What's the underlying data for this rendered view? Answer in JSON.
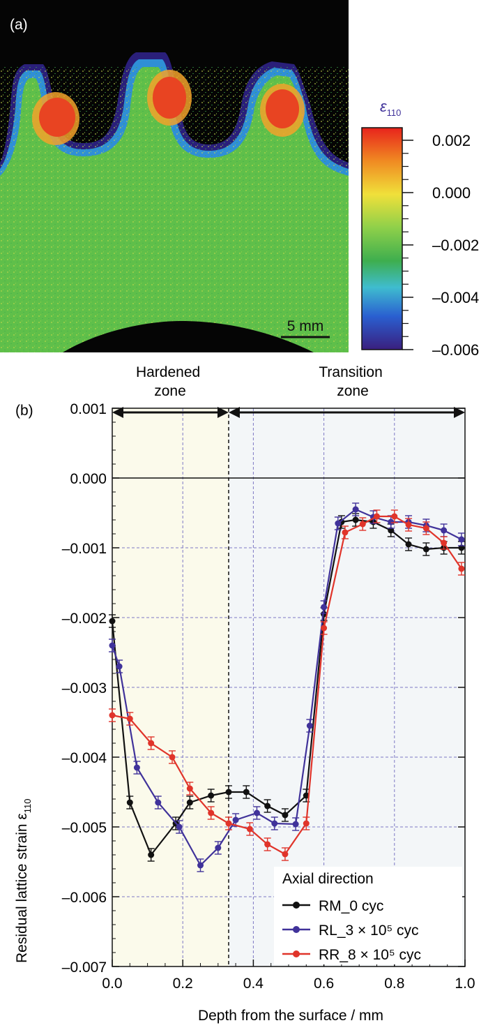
{
  "panel_a": {
    "label": "(a)",
    "colorbar_title": "ε",
    "colorbar_sub": "110",
    "colorbar_ticks": [
      "0.002",
      "0.000",
      "–0.002",
      "–0.004",
      "–0.006"
    ],
    "scale_bar": "5 mm",
    "colors": {
      "background": "#050505",
      "bulk": "#5fbf4a",
      "surface": "#2a66d8",
      "edge": "#2a1f7a",
      "tip": "#e84422",
      "tip_halo": "#f2a22a"
    }
  },
  "panel_b": {
    "label": "(b)",
    "zone_hardened": [
      "Hardened",
      "zone"
    ],
    "zone_transition": [
      "Transition",
      "zone"
    ],
    "zone_divider_x": 0.33,
    "zone_colors": {
      "hardened": "#fbfaeb",
      "transition": "#f3f6f8"
    }
  },
  "chart_data": {
    "type": "line",
    "xlabel": "Depth from the surface / mm",
    "ylabel": "Residual lattice strain ε",
    "ylabel_sub": "110",
    "xlim": [
      0.0,
      1.0
    ],
    "ylim": [
      -0.007,
      0.001
    ],
    "x_ticks": [
      "0.0",
      "0.2",
      "0.4",
      "0.6",
      "0.8",
      "1.0"
    ],
    "y_ticks": [
      "0.001",
      "0.000",
      "–0.001",
      "–0.002",
      "–0.003",
      "–0.004",
      "–0.005",
      "–0.006",
      "–0.007"
    ],
    "grid": true,
    "legend_title": "Axial direction",
    "legend_position": "bottom-right",
    "series": [
      {
        "name": "RM_0 cyc",
        "color": "#111111",
        "x": [
          0.0,
          0.05,
          0.11,
          0.18,
          0.22,
          0.28,
          0.33,
          0.38,
          0.44,
          0.49,
          0.55,
          0.6,
          0.65,
          0.69,
          0.74,
          0.79,
          0.84,
          0.89,
          0.94,
          0.99
        ],
        "y": [
          -0.00205,
          -0.00465,
          -0.0054,
          -0.00495,
          -0.00465,
          -0.00455,
          -0.0045,
          -0.0045,
          -0.0047,
          -0.00483,
          -0.00455,
          -0.00195,
          -0.00063,
          -0.0006,
          -0.00063,
          -0.00075,
          -0.00095,
          -0.00102,
          -0.001,
          -0.001
        ]
      },
      {
        "name": "RL_3 × 10⁵ cyc",
        "color": "#40329a",
        "x": [
          0.0,
          0.02,
          0.07,
          0.13,
          0.19,
          0.25,
          0.3,
          0.35,
          0.41,
          0.46,
          0.52,
          0.56,
          0.6,
          0.64,
          0.69,
          0.74,
          0.79,
          0.84,
          0.89,
          0.94,
          0.99
        ],
        "y": [
          -0.0024,
          -0.0027,
          -0.00415,
          -0.00465,
          -0.005,
          -0.00555,
          -0.0053,
          -0.0049,
          -0.0048,
          -0.00495,
          -0.00496,
          -0.00355,
          -0.00185,
          -0.00065,
          -0.00045,
          -0.00056,
          -0.00063,
          -0.00063,
          -0.00068,
          -0.00075,
          -0.00088
        ]
      },
      {
        "name": "RR_8 × 10⁵ cyc",
        "color": "#e0342a",
        "x": [
          0.0,
          0.05,
          0.11,
          0.17,
          0.22,
          0.28,
          0.33,
          0.39,
          0.44,
          0.49,
          0.55,
          0.6,
          0.66,
          0.71,
          0.75,
          0.8,
          0.84,
          0.89,
          0.94,
          0.99
        ],
        "y": [
          -0.0034,
          -0.00345,
          -0.0038,
          -0.004,
          -0.00445,
          -0.0048,
          -0.00495,
          -0.00503,
          -0.00525,
          -0.00539,
          -0.00495,
          -0.00215,
          -0.00078,
          -0.00066,
          -0.00055,
          -0.00055,
          -0.00067,
          -0.00072,
          -0.00093,
          -0.0013
        ]
      }
    ]
  }
}
